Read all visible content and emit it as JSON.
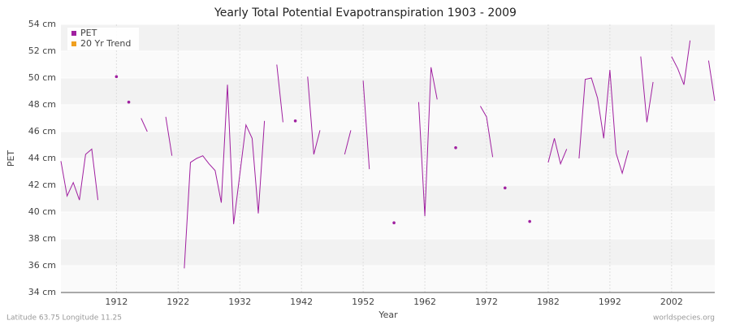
{
  "chart_data": {
    "type": "line",
    "title": "Yearly Total Potential Evapotranspiration 1903 - 2009",
    "x_label": "Year",
    "y_label": "PET",
    "footer_left": "Latitude 63.75 Longitude 11.25",
    "footer_right": "worldspecies.org",
    "x": [
      1903,
      1904,
      1905,
      1906,
      1907,
      1908,
      1909,
      1910,
      1911,
      1912,
      1913,
      1914,
      1915,
      1916,
      1917,
      1918,
      1919,
      1920,
      1921,
      1922,
      1923,
      1924,
      1925,
      1926,
      1927,
      1928,
      1929,
      1930,
      1931,
      1932,
      1933,
      1934,
      1935,
      1936,
      1937,
      1938,
      1939,
      1940,
      1941,
      1942,
      1943,
      1944,
      1945,
      1946,
      1947,
      1948,
      1949,
      1950,
      1951,
      1952,
      1953,
      1954,
      1955,
      1956,
      1957,
      1958,
      1959,
      1960,
      1961,
      1962,
      1963,
      1964,
      1965,
      1966,
      1967,
      1968,
      1969,
      1970,
      1971,
      1972,
      1973,
      1974,
      1975,
      1976,
      1977,
      1978,
      1979,
      1980,
      1981,
      1982,
      1983,
      1984,
      1985,
      1986,
      1987,
      1988,
      1989,
      1990,
      1991,
      1992,
      1993,
      1994,
      1995,
      1996,
      1997,
      1998,
      1999,
      2000,
      2001,
      2002,
      2003,
      2004,
      2005,
      2006,
      2007,
      2008,
      2009
    ],
    "series": [
      {
        "name": "PET",
        "color": "#a020a0",
        "values": [
          43.8,
          41.2,
          42.2,
          40.9,
          44.3,
          44.7,
          40.9,
          null,
          null,
          50.1,
          null,
          48.2,
          null,
          47.0,
          46.0,
          null,
          null,
          47.1,
          44.2,
          null,
          35.8,
          43.7,
          44.0,
          44.2,
          43.6,
          43.1,
          40.7,
          49.5,
          39.1,
          42.8,
          46.5,
          45.5,
          39.9,
          46.8,
          null,
          51.0,
          46.7,
          null,
          46.8,
          null,
          50.1,
          44.3,
          46.1,
          null,
          null,
          null,
          44.3,
          46.1,
          null,
          49.8,
          43.2,
          null,
          null,
          null,
          39.2,
          null,
          null,
          null,
          48.2,
          39.7,
          50.8,
          48.4,
          null,
          null,
          44.8,
          null,
          null,
          null,
          47.9,
          47.1,
          44.1,
          null,
          41.8,
          null,
          null,
          null,
          39.3,
          null,
          null,
          43.7,
          45.5,
          43.6,
          44.7,
          null,
          44.0,
          49.9,
          50.0,
          48.5,
          45.5,
          50.6,
          44.4,
          42.9,
          44.6,
          null,
          51.6,
          46.7,
          49.7,
          null,
          null,
          51.6,
          50.7,
          49.5,
          52.8,
          null,
          null,
          51.3,
          48.3
        ]
      },
      {
        "name": "20 Yr Trend",
        "color": "#f0a020"
      }
    ],
    "xlim": [
      1903,
      2009
    ],
    "xticks": [
      1912,
      1922,
      1932,
      1942,
      1952,
      1962,
      1972,
      1982,
      1992,
      2002
    ],
    "ylim": [
      34,
      54
    ],
    "yticks": [
      {
        "value": 34,
        "label": "34 cm"
      },
      {
        "value": 36,
        "label": "36 cm"
      },
      {
        "value": 38,
        "label": "38 cm"
      },
      {
        "value": 40,
        "label": "40 cm"
      },
      {
        "value": 42,
        "label": "42 cm"
      },
      {
        "value": 44,
        "label": "44 cm"
      },
      {
        "value": 46,
        "label": "46 cm"
      },
      {
        "value": 48,
        "label": "48 cm"
      },
      {
        "value": 50,
        "label": "50 cm"
      },
      {
        "value": 52,
        "label": "52 cm"
      },
      {
        "value": 54,
        "label": "54 cm"
      }
    ],
    "grid": true,
    "legend": "top-left"
  }
}
